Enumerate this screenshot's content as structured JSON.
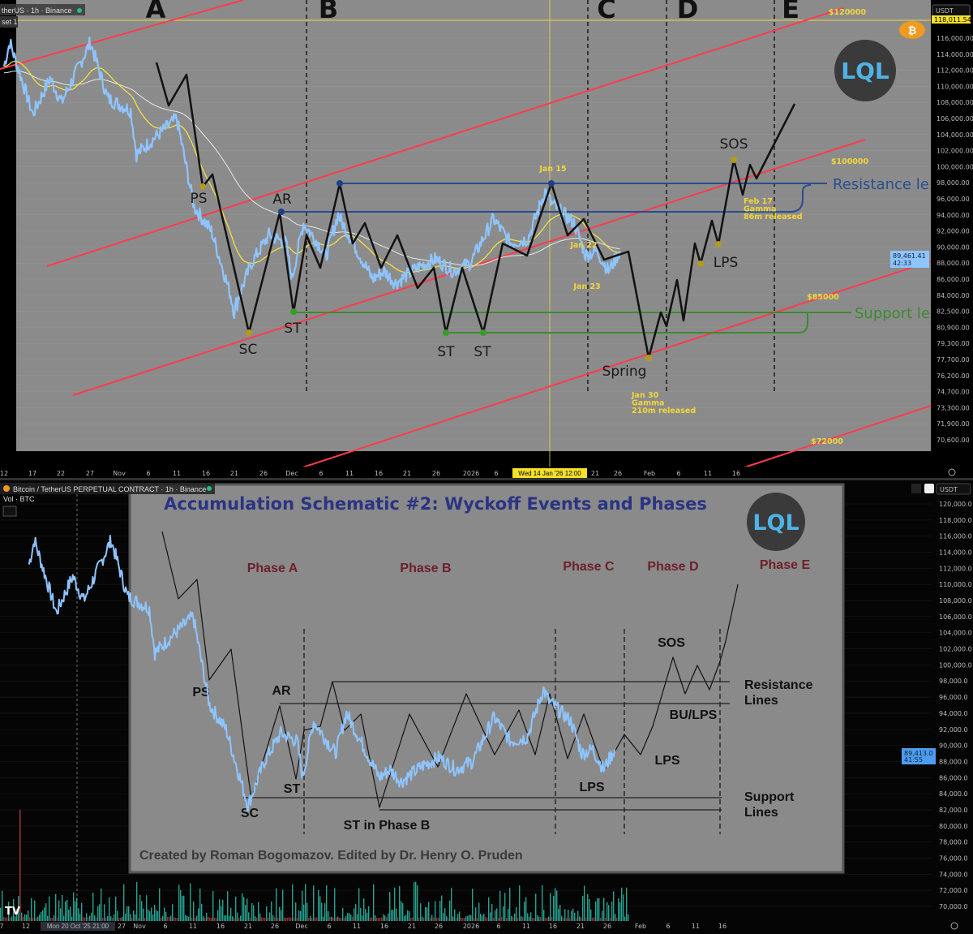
{
  "top_panel": {
    "legend": "therUS · 1h · Binance",
    "set_label": "set 1",
    "currency": "USDT",
    "phases": [
      "A",
      "B",
      "C",
      "D",
      "E"
    ],
    "y_ticks": [
      "116,000.00",
      "114,000.00",
      "112,000.00",
      "110,000.00",
      "108,000.00",
      "106,000.00",
      "104,000.00",
      "102,000.00",
      "100,000.00",
      "98,000.00",
      "96,000.00",
      "94,000.00",
      "92,000.00",
      "90,000.00",
      "88,000.00",
      "86,000.00",
      "84,000.00",
      "82,500.00",
      "80,900.00",
      "79,300.00",
      "77,700.00",
      "76,200.00",
      "74,700.00",
      "73,300.00",
      "71,900.00",
      "70,600.00"
    ],
    "crosshair_price": "118,011.54",
    "last_price": "89,461.41",
    "last_countdown": "42:33",
    "x_ticks": [
      "12",
      "17",
      "22",
      "27",
      "Nov",
      "6",
      "11",
      "16",
      "21",
      "26",
      "Dec",
      "6",
      "11",
      "16",
      "21",
      "26",
      "2026",
      "6",
      "",
      "21",
      "26",
      "Feb",
      "6",
      "11",
      "16"
    ],
    "crosshair_date": "Wed 14 Jan '26  12:00",
    "events": {
      "ps": "PS",
      "ar": "AR",
      "sc": "SC",
      "st1": "ST",
      "st2": "ST",
      "st3": "ST",
      "spring": "Spring",
      "lps": "LPS",
      "sos": "SOS"
    },
    "resistance_label": "Resistance le",
    "support_label": "Support le",
    "price_levels": {
      "p120": "$120000",
      "p100": "$100000",
      "p85": "$85000",
      "p72": "$72000"
    },
    "notes": {
      "jan15": "Jan 15",
      "jan22": "Jan 22",
      "jan23": "Jan 23",
      "jan30": [
        "Jan 30",
        "Gamma",
        "210m released"
      ],
      "feb17": [
        "Feb 17",
        "Gamma",
        "86m released"
      ]
    },
    "logo": "LQL"
  },
  "bottom_panel": {
    "legend": "Bitcoin / TetherUS PERPETUAL CONTRACT · 1h · Binance",
    "vol_label": "Vol · BTC",
    "currency": "USDT",
    "y_ticks": [
      "120,000.0",
      "118,000.0",
      "116,000.0",
      "114,000.0",
      "112,000.0",
      "110,000.0",
      "108,000.0",
      "106,000.0",
      "104,000.0",
      "102,000.0",
      "100,000.0",
      "98,000.0",
      "96,000.0",
      "94,000.0",
      "92,000.0",
      "90,000.0",
      "88,000.0",
      "86,000.0",
      "84,000.0",
      "82,000.0",
      "80,000.0",
      "78,000.0",
      "76,000.0",
      "74,000.0",
      "72,000.0",
      "70,000.0"
    ],
    "last_price": "89,413.0",
    "last_countdown": "41:55",
    "x_ticks": [
      "7",
      "12",
      "",
      "27",
      "Nov",
      "6",
      "11",
      "16",
      "21",
      "26",
      "Dec",
      "6",
      "11",
      "16",
      "21",
      "26",
      "2026",
      "6",
      "11",
      "16",
      "21",
      "26",
      "Feb",
      "6",
      "11",
      "16"
    ],
    "crosshair_date": "Mon 20 Oct '25  21:00",
    "schematic": {
      "title": "Accumulation Schematic #2: Wyckoff Events and Phases",
      "phases": [
        "Phase A",
        "Phase B",
        "Phase C",
        "Phase D",
        "Phase E"
      ],
      "events": {
        "ps": "PS",
        "ar": "AR",
        "sc": "SC",
        "st": "ST",
        "st_b": "ST in Phase B",
        "sos": "SOS",
        "bu_lps": "BU/LPS",
        "lps1": "LPS",
        "lps2": "LPS"
      },
      "resistance": [
        "Resistance",
        "Lines"
      ],
      "support": [
        "Support",
        "Lines"
      ],
      "credit": "Created by Roman Bogomazov. Edited by Dr. Henry O. Pruden",
      "logo": "LQL"
    }
  },
  "colors": {
    "price": "#8ec4ff",
    "channel": "#ff3b4e",
    "ema_fast": "#f2e040",
    "ema_slow": "#e8e8e8",
    "resistance": "#2a4d8f",
    "support": "#3c8a2e",
    "annotation": "#f2d63a",
    "title": "#2b3483",
    "phase": "#6e1f2b",
    "vol_up": "#2bb3a0",
    "vol_down": "#a8323a"
  },
  "chart_data": {
    "type": "line",
    "title": "",
    "xlabel": "",
    "ylabel": "USDT",
    "x": [
      "2025-10-12",
      "2025-10-13",
      "2025-10-17",
      "2025-10-20",
      "2025-10-22",
      "2025-10-27",
      "2025-10-30",
      "2025-11-03",
      "2025-11-04",
      "2025-11-07",
      "2025-11-11",
      "2025-11-14",
      "2025-11-17",
      "2025-11-21",
      "2025-11-24",
      "2025-11-27",
      "2025-11-30",
      "2025-12-01",
      "2025-12-03",
      "2025-12-07",
      "2025-12-09",
      "2025-12-15",
      "2025-12-17",
      "2025-12-19",
      "2025-12-23",
      "2025-12-26",
      "2025-12-29",
      "2026-01-01",
      "2026-01-05",
      "2026-01-08",
      "2026-01-11",
      "2026-01-14",
      "2026-01-15",
      "2026-01-19",
      "2026-01-21",
      "2026-01-23",
      "2026-01-25",
      "2026-01-27"
    ],
    "series": [
      {
        "values": [
          112500,
          115500,
          106500,
          111000,
          108000,
          115500,
          108500,
          107000,
          101500,
          103500,
          106000,
          95000,
          92000,
          82500,
          88000,
          91500,
          90500,
          86000,
          93000,
          89000,
          94000,
          86000,
          87000,
          85500,
          87500,
          88500,
          87000,
          88000,
          93500,
          90500,
          91000,
          97000,
          95500,
          93000,
          89000,
          89500,
          87000,
          89500
        ]
      }
    ],
    "ylim": [
      70000,
      120000
    ],
    "grid": true
  }
}
